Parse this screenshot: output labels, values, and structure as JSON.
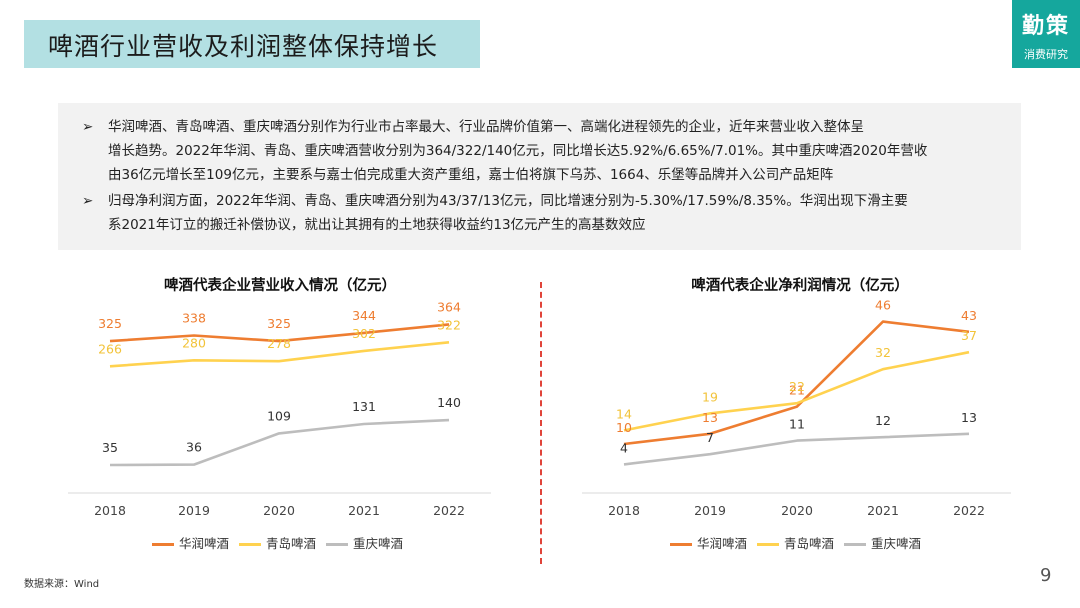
{
  "header": {
    "title": "啤酒行业营收及利润整体保持增长",
    "logo_main": "勤策",
    "logo_sub": "消费研究"
  },
  "summary": {
    "glyph": "➢",
    "bullets": [
      {
        "lines": [
          "华润啤酒、青岛啤酒、重庆啤酒分别作为行业市占率最大、行业品牌价值第一、高端化进程领先的企业，近年来营业收入整体呈",
          "增长趋势。2022年华润、青岛、重庆啤酒营收分别为364/322/140亿元，同比增长达5.92%/6.65%/7.01%。其中重庆啤酒2020年营收",
          "由36亿元增长至109亿元，主要系与嘉士伯完成重大资产重组，嘉士伯将旗下乌苏、1664、乐堡等品牌并入公司产品矩阵"
        ]
      },
      {
        "lines": [
          "归母净利润方面，2022年华润、青岛、重庆啤酒分别为43/37/13亿元，同比增速分别为-5.30%/17.59%/8.35%。华润出现下滑主要",
          "系2021年订立的搬迁补偿协议，就出让其拥有的土地获得收益约13亿元产生的高基数效应"
        ]
      }
    ]
  },
  "footer": {
    "source": "数据来源：Wind",
    "page": "9"
  },
  "chart_data": [
    {
      "type": "line",
      "title": "啤酒代表企业营业收入情况（亿元）",
      "categories": [
        "2018",
        "2019",
        "2020",
        "2021",
        "2022"
      ],
      "ylim": [
        0,
        400
      ],
      "grid": false,
      "legend": "bottom",
      "series": [
        {
          "name": "华润啤酒",
          "color": "#ee7d31",
          "values": [
            325,
            338,
            325,
            344,
            364
          ]
        },
        {
          "name": "青岛啤酒",
          "color": "#ffd24f",
          "values": [
            266,
            280,
            278,
            302,
            322
          ]
        },
        {
          "name": "重庆啤酒",
          "color": "#bdbdbd",
          "values": [
            35,
            36,
            109,
            131,
            140
          ]
        }
      ]
    },
    {
      "type": "line",
      "title": "啤酒代表企业净利润情况（亿元）",
      "categories": [
        "2018",
        "2019",
        "2020",
        "2021",
        "2022"
      ],
      "ylim": [
        0,
        50
      ],
      "grid": false,
      "legend": "bottom",
      "series": [
        {
          "name": "华润啤酒",
          "color": "#ee7d31",
          "values": [
            10,
            13,
            21,
            46,
            43
          ]
        },
        {
          "name": "青岛啤酒",
          "color": "#ffd24f",
          "values": [
            14,
            19,
            22,
            32,
            37
          ]
        },
        {
          "name": "重庆啤酒",
          "color": "#bdbdbd",
          "values": [
            4,
            7,
            11,
            12,
            13
          ]
        }
      ]
    }
  ]
}
